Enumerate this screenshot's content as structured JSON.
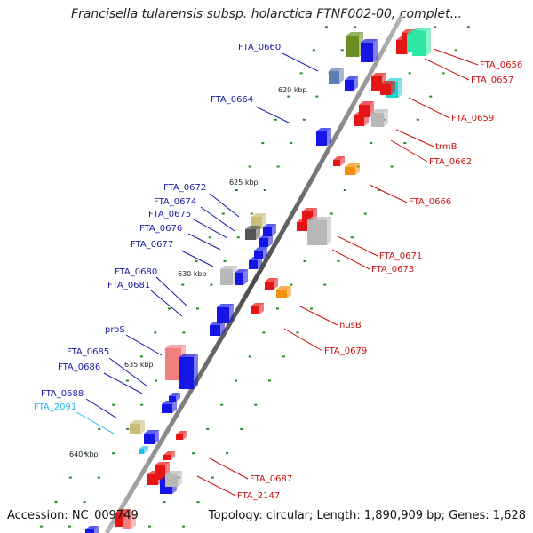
{
  "title": "Francisella tularensis subsp. holarctica FTNF002-00, complet...",
  "footer": {
    "accession": "Accession: NC_009749",
    "topology": "Topology: circular; Length: 1,890,909 bp; Genes: 1,628"
  },
  "colors": {
    "left_label": "#1a1aa6",
    "left_label_cyan": "#22bbee",
    "right_label": "#cc1111",
    "tick_mark": "#228822",
    "backbone": "#888888"
  },
  "kbp_marks": [
    "620 kbp",
    "625 kbp",
    "630 kbp",
    "635 kbp",
    "640 kbp"
  ],
  "left_labels": [
    "FTA_0660",
    "FTA_0664",
    "FTA_0672",
    "FTA_0674",
    "FTA_0675",
    "FTA_0676",
    "FTA_0677",
    "FTA_0680",
    "FTA_0681",
    "proS",
    "FTA_0685",
    "FTA_0686",
    "FTA_0688",
    "FTA_2091"
  ],
  "right_labels": [
    "FTA_0656",
    "FTA_0657",
    "FTA_0659",
    "trmB",
    "FTA_0662",
    "FTA_0666",
    "FTA_0671",
    "FTA_0673",
    "nusB",
    "FTA_0679",
    "FTA_0687",
    "FTA_2147"
  ]
}
